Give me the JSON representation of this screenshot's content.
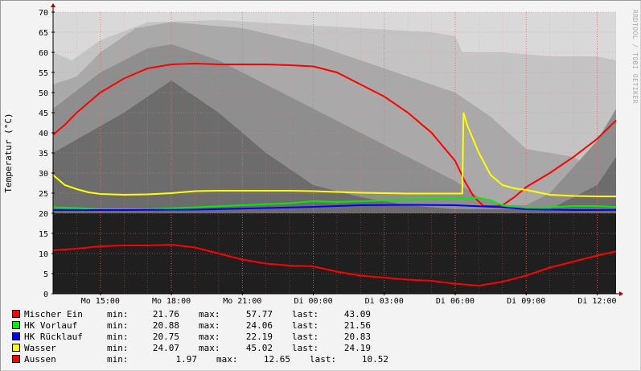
{
  "chart_data": {
    "type": "line",
    "ylabel": "Temperatur (°C)",
    "watermark": "RRDTOOL / TOBI OETIKER",
    "ylim": [
      0,
      70
    ],
    "yticks": [
      0,
      5,
      10,
      15,
      20,
      25,
      30,
      35,
      40,
      45,
      50,
      55,
      60,
      65,
      70
    ],
    "x_start_hours": 13.0,
    "x_end_hours": 36.8,
    "xticks": [
      {
        "label": "Mo 15:00",
        "hours": 15
      },
      {
        "label": "Mo 18:00",
        "hours": 18
      },
      {
        "label": "Mo 21:00",
        "hours": 21
      },
      {
        "label": "Di 00:00",
        "hours": 24
      },
      {
        "label": "Di 03:00",
        "hours": 27
      },
      {
        "label": "Di 06:00",
        "hours": 30
      },
      {
        "label": "Di 09:00",
        "hours": 33
      },
      {
        "label": "Di 12:00",
        "hours": 36
      }
    ],
    "grid": true,
    "series": [
      {
        "name": "Mischer Ein",
        "color": "#ff0000",
        "min": "21.76",
        "max": "57.77",
        "last": "43.09",
        "x": [
          13.0,
          13.5,
          14.0,
          15.0,
          16.0,
          17.0,
          18.0,
          19.0,
          20.0,
          21.0,
          22.0,
          23.0,
          24.0,
          25.0,
          26.0,
          27.0,
          28.0,
          29.0,
          29.5,
          30.0,
          30.4,
          30.8,
          31.2,
          31.7,
          32.0,
          32.5,
          33.0,
          34.0,
          35.0,
          36.0,
          36.8
        ],
        "values": [
          39.5,
          42,
          45,
          50,
          53.5,
          56,
          57,
          57.2,
          57,
          57,
          57,
          56.8,
          56.5,
          55,
          52,
          49,
          45,
          40,
          36.5,
          33,
          28,
          24,
          21.8,
          21.8,
          22,
          24,
          26.5,
          30,
          34,
          38.5,
          43.09
        ]
      },
      {
        "name": "HK Vorlauf",
        "color": "#00ee00",
        "min": "20.88",
        "max": "24.06",
        "last": "21.56",
        "x": [
          13.0,
          14.0,
          15.0,
          17.0,
          19.0,
          21.0,
          23.0,
          24.0,
          25.0,
          26.0,
          27.0,
          28.0,
          29.0,
          30.0,
          31.0,
          31.5,
          32.0,
          33.0,
          34.0,
          35.0,
          36.0,
          36.8
        ],
        "values": [
          21.5,
          21.3,
          21,
          21,
          21.5,
          22,
          22.5,
          23,
          22.8,
          23,
          23.2,
          23.5,
          23.6,
          23.8,
          23.8,
          23.2,
          22,
          21.2,
          21.5,
          21.8,
          21.8,
          21.56
        ]
      },
      {
        "name": "HK Rücklauf",
        "color": "#0000ff",
        "min": "20.75",
        "max": "22.19",
        "last": "20.83",
        "x": [
          13.0,
          16.0,
          19.0,
          22.0,
          24.0,
          26.0,
          28.0,
          30.0,
          32.0,
          33.0,
          34.0,
          35.0,
          36.0,
          36.8
        ],
        "values": [
          20.8,
          20.8,
          20.9,
          21.3,
          21.6,
          22,
          22.1,
          22,
          21.5,
          21,
          20.9,
          20.8,
          20.8,
          20.83
        ]
      },
      {
        "name": "Wasser",
        "color": "#ffff00",
        "min": "24.07",
        "max": "45.02",
        "last": "24.19",
        "x": [
          13.0,
          13.5,
          14.0,
          14.5,
          15.0,
          16.0,
          17.0,
          18.0,
          19.0,
          20.0,
          21.0,
          22.0,
          23.0,
          24.0,
          25.0,
          26.0,
          27.0,
          28.0,
          29.0,
          30.0,
          30.3,
          30.35,
          30.5,
          31.0,
          31.5,
          32.0,
          32.5,
          33.0,
          33.5,
          34.0,
          35.0,
          36.0,
          36.8
        ],
        "values": [
          29.5,
          27,
          26,
          25.2,
          24.8,
          24.6,
          24.7,
          25,
          25.5,
          25.6,
          25.6,
          25.6,
          25.6,
          25.5,
          25.3,
          25.1,
          25,
          24.9,
          24.9,
          24.9,
          24.9,
          45.02,
          42,
          35,
          29.5,
          27,
          26.2,
          25.8,
          25.2,
          24.6,
          24.3,
          24.2,
          24.19
        ]
      },
      {
        "name": "Aussen",
        "color": "#ff0000",
        "min": "1.97",
        "max": "12.65",
        "last": "10.52",
        "x": [
          13.0,
          14.0,
          15.0,
          16.0,
          17.0,
          18.0,
          19.0,
          20.0,
          21.0,
          22.0,
          23.0,
          24.0,
          25.0,
          26.0,
          27.0,
          28.0,
          29.0,
          30.0,
          31.0,
          32.0,
          33.0,
          34.0,
          35.0,
          36.0,
          36.8
        ],
        "values": [
          10.8,
          11.2,
          11.8,
          12,
          12,
          12.2,
          11.5,
          10,
          8.5,
          7.5,
          7,
          6.8,
          5.5,
          4.5,
          4,
          3.5,
          3.2,
          2.5,
          2,
          3,
          4.5,
          6.5,
          8,
          9.5,
          10.52
        ]
      }
    ]
  },
  "legend": {
    "min_label": "min:",
    "max_label": "max:",
    "last_label": "last:"
  }
}
